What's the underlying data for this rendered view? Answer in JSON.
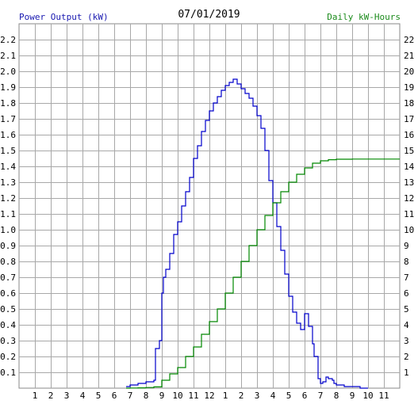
{
  "header": {
    "left_label": "Power Output (kW)",
    "date": "07/01/2019",
    "right_label": "Daily kW-Hours"
  },
  "chart_data": {
    "type": "line",
    "title": "07/01/2019",
    "xlabel": "",
    "ylabel": "Power Output (kW)",
    "y2label": "Daily kW-Hours",
    "x_unit": "hour of day",
    "xlim": [
      0,
      24
    ],
    "ylim": [
      0,
      2.3
    ],
    "y2lim": [
      0,
      23
    ],
    "x_tick_labels": [
      "1",
      "2",
      "3",
      "4",
      "5",
      "6",
      "7",
      "8",
      "9",
      "10",
      "11",
      "12",
      "1",
      "2",
      "3",
      "4",
      "5",
      "6",
      "7",
      "8",
      "9",
      "10",
      "11"
    ],
    "y_tick_labels": [
      "0.1",
      "0.2",
      "0.3",
      "0.4",
      "0.5",
      "0.6",
      "0.7",
      "0.8",
      "0.9",
      "1.0",
      "1.1",
      "1.2",
      "1.3",
      "1.4",
      "1.5",
      "1.6",
      "1.7",
      "1.8",
      "1.9",
      "2.0",
      "2.1",
      "2.2"
    ],
    "y2_tick_labels": [
      "1",
      "2",
      "3",
      "4",
      "5",
      "6",
      "7",
      "8",
      "9",
      "10",
      "11",
      "12",
      "13",
      "14",
      "15",
      "16",
      "17",
      "18",
      "19",
      "20",
      "21",
      "22"
    ],
    "grid": true,
    "colors": {
      "power": "#0000cc",
      "energy": "#008800",
      "grid": "#a8a8a8",
      "left_text": "#1818b0",
      "right_text": "#1a8a1a"
    },
    "series": [
      {
        "name": "Power Output (kW)",
        "axis": "left",
        "x": [
          6.75,
          7.0,
          7.5,
          8.0,
          8.5,
          8.6,
          8.85,
          9.0,
          9.1,
          9.25,
          9.5,
          9.75,
          10.0,
          10.25,
          10.5,
          10.75,
          11.0,
          11.25,
          11.5,
          11.75,
          12.0,
          12.25,
          12.5,
          12.75,
          13.0,
          13.25,
          13.5,
          13.75,
          14.0,
          14.25,
          14.5,
          14.75,
          15.0,
          15.25,
          15.5,
          15.75,
          16.0,
          16.25,
          16.5,
          16.75,
          17.0,
          17.25,
          17.5,
          17.75,
          18.0,
          18.25,
          18.5,
          18.6,
          18.85,
          19.0,
          19.15,
          19.35,
          19.5,
          19.75,
          19.85,
          20.0,
          20.25,
          20.5,
          20.75,
          21.0,
          21.5,
          22.0
        ],
        "y": [
          0.01,
          0.02,
          0.03,
          0.04,
          0.05,
          0.25,
          0.3,
          0.6,
          0.7,
          0.75,
          0.85,
          0.97,
          1.05,
          1.15,
          1.24,
          1.33,
          1.45,
          1.53,
          1.62,
          1.69,
          1.75,
          1.8,
          1.84,
          1.88,
          1.91,
          1.93,
          1.95,
          1.92,
          1.89,
          1.86,
          1.83,
          1.78,
          1.72,
          1.64,
          1.5,
          1.31,
          1.17,
          1.02,
          0.87,
          0.72,
          0.58,
          0.48,
          0.41,
          0.37,
          0.47,
          0.39,
          0.28,
          0.2,
          0.06,
          0.03,
          0.04,
          0.07,
          0.06,
          0.05,
          0.03,
          0.02,
          0.02,
          0.01,
          0.01,
          0.01,
          0.0,
          0.0
        ]
      },
      {
        "name": "Daily kW-Hours",
        "axis": "right",
        "x": [
          6.75,
          7.0,
          7.5,
          8.0,
          8.5,
          9.0,
          9.5,
          10.0,
          10.5,
          11.0,
          11.5,
          12.0,
          12.5,
          13.0,
          13.5,
          14.0,
          14.5,
          15.0,
          15.5,
          16.0,
          16.5,
          17.0,
          17.5,
          18.0,
          18.5,
          19.0,
          19.5,
          20.0,
          21.0,
          22.0,
          23.0,
          24.0
        ],
        "y": [
          0.0,
          0.01,
          0.02,
          0.04,
          0.08,
          0.5,
          0.9,
          1.3,
          2.0,
          2.6,
          3.4,
          4.2,
          5.0,
          6.0,
          7.0,
          8.0,
          9.0,
          10.0,
          10.9,
          11.7,
          12.4,
          13.0,
          13.5,
          13.9,
          14.2,
          14.35,
          14.42,
          14.45,
          14.46,
          14.46,
          14.46,
          14.46
        ]
      }
    ]
  }
}
